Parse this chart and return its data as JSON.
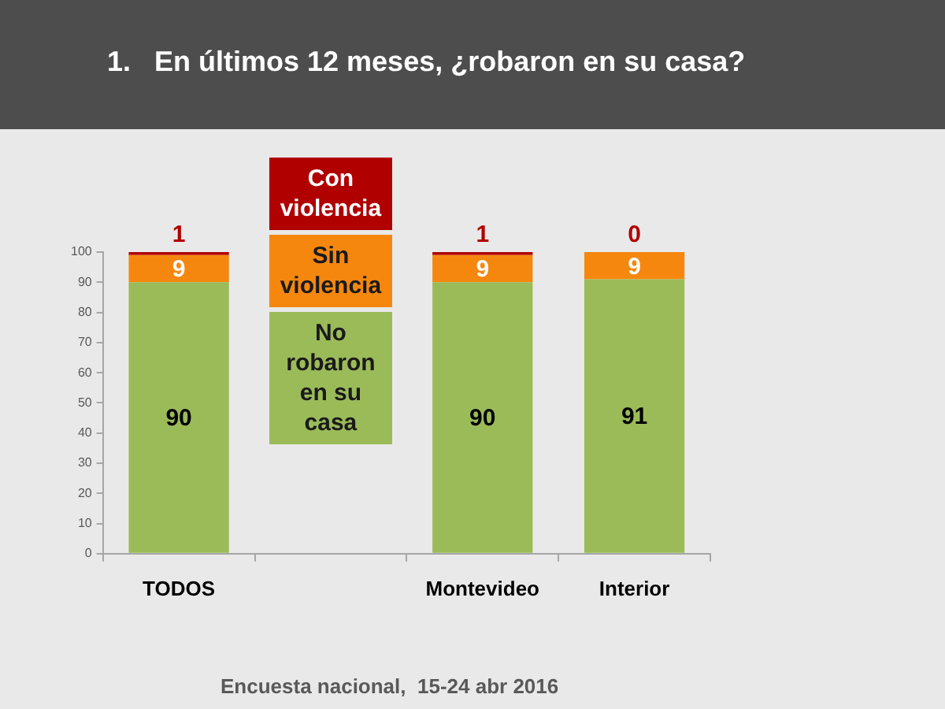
{
  "chart_data": {
    "type": "bar",
    "title": "1.   En últimos 12 meses, ¿robaron en su casa?",
    "categories": [
      "TODOS",
      null,
      "Montevideo",
      "Interior"
    ],
    "series": [
      {
        "name": "No robaron en su casa",
        "color": "#9bbb59",
        "values": [
          90,
          null,
          90,
          91
        ]
      },
      {
        "name": "Sin violencia",
        "color": "#f5870f",
        "values": [
          9,
          null,
          9,
          9
        ]
      },
      {
        "name": "Con violencia",
        "color": "#b00000",
        "values": [
          1,
          null,
          1,
          0
        ]
      }
    ],
    "stacked": true,
    "ylim": [
      0,
      100
    ],
    "yticks": [
      0,
      10,
      20,
      30,
      40,
      50,
      60,
      70,
      80,
      90,
      100
    ],
    "legend": "top",
    "data_labels": true,
    "annotations": [
      "Encuesta nacional,  15-24 abr 2016"
    ]
  }
}
